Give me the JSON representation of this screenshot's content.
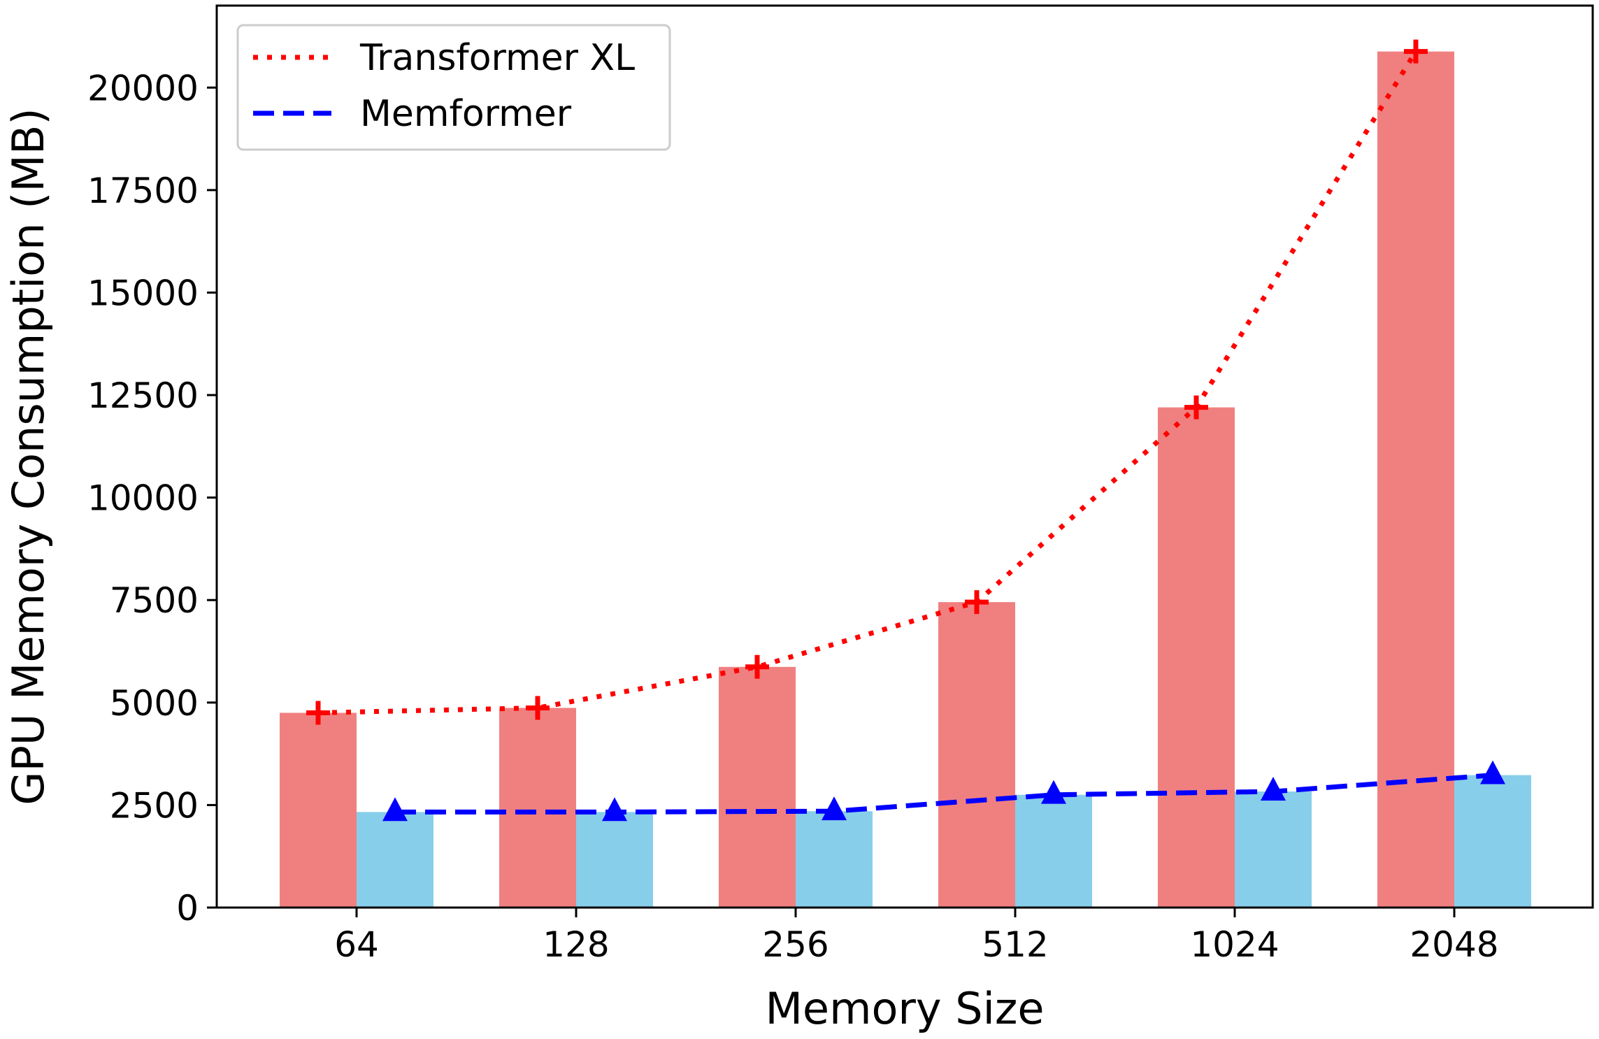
{
  "chart_data": {
    "type": "bar",
    "categories": [
      "64",
      "128",
      "256",
      "512",
      "1024",
      "2048"
    ],
    "xlabel": "Memory Size",
    "ylabel": "GPU Memory Consumption (MB)",
    "ylim": [
      0,
      22000
    ],
    "yticks": [
      0,
      2500,
      5000,
      7500,
      10000,
      12500,
      15000,
      17500,
      20000
    ],
    "grid": false,
    "legend_position": "top-left",
    "series": [
      {
        "name": "Transformer XL",
        "values": [
          4750,
          4870,
          5870,
          7450,
          12200,
          20880
        ],
        "bar_color": "#f08080",
        "line_color": "#ff0000",
        "line_style": "dotted",
        "marker": "plus"
      },
      {
        "name": "Memformer",
        "values": [
          2330,
          2330,
          2350,
          2750,
          2830,
          3230
        ],
        "bar_color": "#87ceeb",
        "line_color": "#0000ff",
        "line_style": "dashed",
        "marker": "triangle"
      }
    ]
  }
}
